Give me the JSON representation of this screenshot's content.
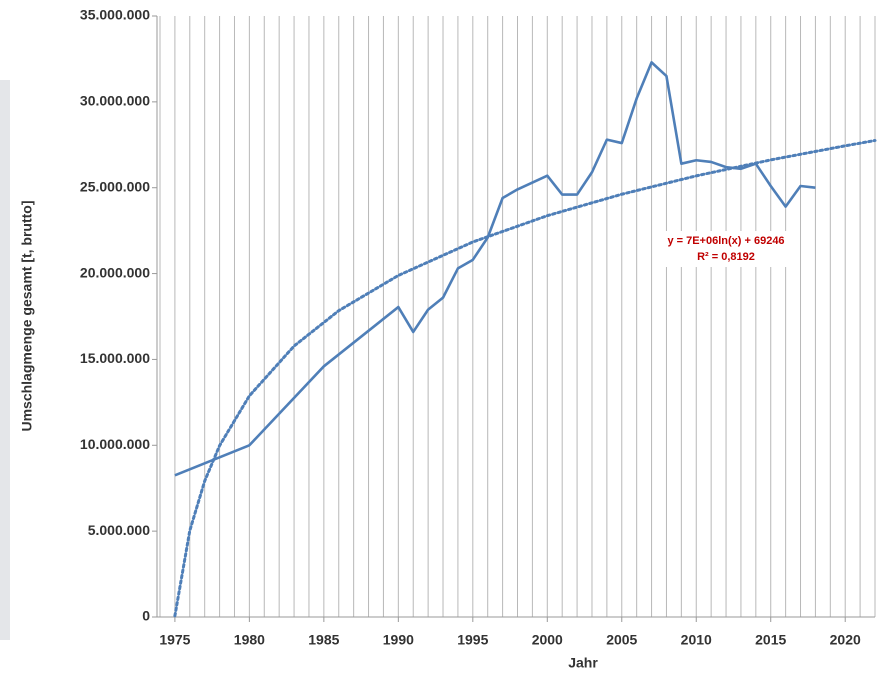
{
  "chart_data": {
    "type": "line",
    "y_axis_label": "Umschlagmenge gesamt [t, brutto]",
    "x_axis_label": "Jahr",
    "series": [
      {
        "color": "#4f7fb8",
        "style": "solid",
        "x": [
          1975,
          1980,
          1985,
          1990,
          1991,
          1992,
          1993,
          1994,
          1995,
          1996,
          1997,
          1998,
          1999,
          2000,
          2001,
          2002,
          2003,
          2004,
          2005,
          2006,
          2007,
          2008,
          2009,
          2010,
          2011,
          2012,
          2013,
          2014,
          2015,
          2016,
          2017,
          2018
        ],
        "values": [
          8250000,
          10000000,
          14600000,
          18050000,
          16600000,
          17900000,
          18600000,
          20300000,
          20800000,
          22100000,
          24400000,
          24900000,
          25300000,
          25700000,
          24600000,
          24600000,
          25900000,
          27800000,
          27600000,
          30200000,
          32300000,
          31500000,
          26400000,
          26600000,
          26500000,
          26200000,
          26100000,
          26400000,
          25100000,
          23900000,
          25100000,
          25000000
        ]
      },
      {
        "color": "#4f7fb8",
        "style": "dotted",
        "x": [
          1975,
          1976,
          1977,
          1978,
          1980,
          1983,
          1986,
          1990,
          1995,
          2000,
          2005,
          2010,
          2015,
          2020,
          2022
        ],
        "values": [
          70000,
          5030000,
          7920000,
          9980000,
          12880000,
          15780000,
          17840000,
          19890000,
          21840000,
          23370000,
          24620000,
          25690000,
          26620000,
          27440000,
          27750000
        ]
      }
    ],
    "annotations": [
      "y = 7E+06ln(x) + 69246",
      "R² = 0,8192"
    ],
    "xlim": [
      1974,
      2022
    ],
    "xticks": [
      1975,
      1980,
      1985,
      1990,
      1995,
      2000,
      2005,
      2010,
      2015,
      2020
    ],
    "x_minor_grid": 1,
    "ylim": [
      0,
      35000000
    ],
    "yticks": [
      0,
      {
        "value": 5000000,
        "label": "5.000.000"
      },
      {
        "value": 10000000,
        "label": "10.000.000"
      },
      {
        "value": 15000000,
        "label": "15.000.000"
      },
      {
        "value": 20000000,
        "label": "20.000.000"
      },
      {
        "value": 25000000,
        "label": "25.000.000"
      },
      {
        "value": 30000000,
        "label": "30.000.000"
      },
      {
        "value": 35000000,
        "label": "35.000.000"
      }
    ]
  }
}
